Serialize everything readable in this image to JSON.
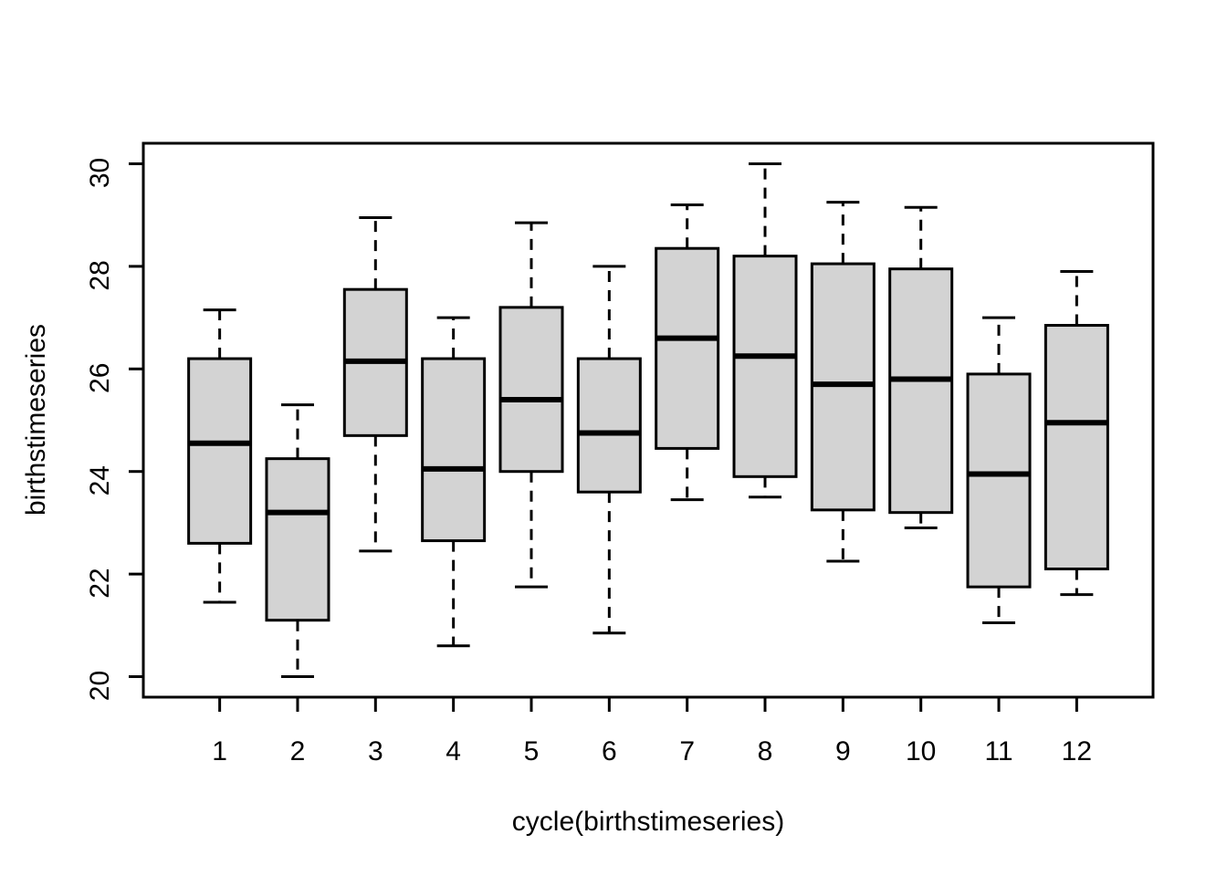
{
  "figure": {
    "background_color": "#ffffff",
    "plot_border_color": "#000000"
  },
  "chart_data": {
    "type": "boxplot",
    "title": "",
    "xlabel": "cycle(birthstimeseries)",
    "ylabel": "birthstimeseries",
    "x_tick_labels": [
      "1",
      "2",
      "3",
      "4",
      "5",
      "6",
      "7",
      "8",
      "9",
      "10",
      "11",
      "12"
    ],
    "y_tick_values": [
      20,
      22,
      24,
      26,
      28,
      30
    ],
    "xlim": [
      0.02,
      12.98
    ],
    "ylim": [
      19.6,
      30.4
    ],
    "grid": false,
    "legend": null,
    "box_fill_color": "#d3d3d3",
    "line_color": "#000000",
    "boxes": [
      {
        "category": "1",
        "whisker_low": 21.45,
        "q1": 22.6,
        "median": 24.55,
        "q3": 26.2,
        "whisker_high": 27.15
      },
      {
        "category": "2",
        "whisker_low": 20.0,
        "q1": 21.1,
        "median": 23.2,
        "q3": 24.25,
        "whisker_high": 25.3
      },
      {
        "category": "3",
        "whisker_low": 22.45,
        "q1": 24.7,
        "median": 26.15,
        "q3": 27.55,
        "whisker_high": 28.95
      },
      {
        "category": "4",
        "whisker_low": 20.6,
        "q1": 22.65,
        "median": 24.05,
        "q3": 26.2,
        "whisker_high": 27.0
      },
      {
        "category": "5",
        "whisker_low": 21.75,
        "q1": 24.0,
        "median": 25.4,
        "q3": 27.2,
        "whisker_high": 28.85
      },
      {
        "category": "6",
        "whisker_low": 20.85,
        "q1": 23.6,
        "median": 24.75,
        "q3": 26.2,
        "whisker_high": 28.0
      },
      {
        "category": "7",
        "whisker_low": 23.45,
        "q1": 24.45,
        "median": 26.6,
        "q3": 28.35,
        "whisker_high": 29.2
      },
      {
        "category": "8",
        "whisker_low": 23.5,
        "q1": 23.9,
        "median": 26.25,
        "q3": 28.2,
        "whisker_high": 30.0
      },
      {
        "category": "9",
        "whisker_low": 22.25,
        "q1": 23.25,
        "median": 25.7,
        "q3": 28.05,
        "whisker_high": 29.25
      },
      {
        "category": "10",
        "whisker_low": 22.9,
        "q1": 23.2,
        "median": 25.8,
        "q3": 27.95,
        "whisker_high": 29.15
      },
      {
        "category": "11",
        "whisker_low": 21.05,
        "q1": 21.75,
        "median": 23.95,
        "q3": 25.9,
        "whisker_high": 27.0
      },
      {
        "category": "12",
        "whisker_low": 21.6,
        "q1": 22.1,
        "median": 24.95,
        "q3": 26.85,
        "whisker_high": 27.9
      }
    ]
  }
}
